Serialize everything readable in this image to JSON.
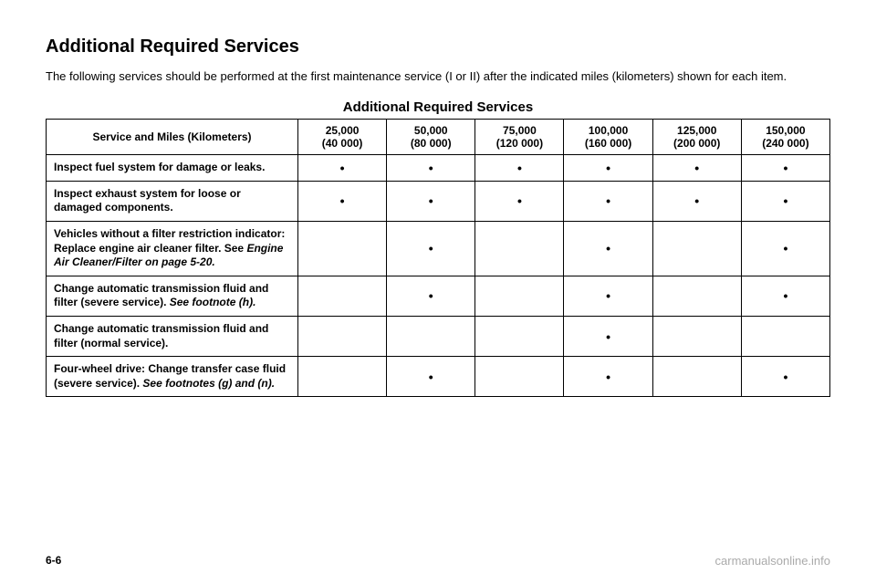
{
  "heading": "Additional Required Services",
  "intro": "The following services should be performed at the first maintenance service (I or II) after the indicated miles (kilometers) shown for each item.",
  "tableTitle": "Additional Required Services",
  "headers": {
    "service": "Service and Miles (Kilometers)",
    "col1": {
      "miles": "25,000",
      "km": "(40 000)"
    },
    "col2": {
      "miles": "50,000",
      "km": "(80 000)"
    },
    "col3": {
      "miles": "75,000",
      "km": "(120 000)"
    },
    "col4": {
      "miles": "100,000",
      "km": "(160 000)"
    },
    "col5": {
      "miles": "125,000",
      "km": "(200 000)"
    },
    "col6": {
      "miles": "150,000",
      "km": "(240 000)"
    }
  },
  "rows": [
    {
      "label": "Inspect fuel system for damage or leaks.",
      "marks": [
        "•",
        "•",
        "•",
        "•",
        "•",
        "•"
      ]
    },
    {
      "label": "Inspect exhaust system for loose or damaged components.",
      "marks": [
        "•",
        "•",
        "•",
        "•",
        "•",
        "•"
      ]
    },
    {
      "label_html": "Vehicles without a filter restriction indicator: Replace engine air cleaner filter. See <span class='italic'>Engine Air Cleaner/Filter on page 5-20.</span>",
      "marks": [
        "",
        "•",
        "",
        "•",
        "",
        "•"
      ]
    },
    {
      "label_html": "Change automatic transmission fluid and filter (severe service). <span class='italic'>See footnote (h).</span>",
      "marks": [
        "",
        "•",
        "",
        "•",
        "",
        "•"
      ]
    },
    {
      "label": "Change automatic transmission fluid and filter (normal service).",
      "marks": [
        "",
        "",
        "",
        "•",
        "",
        ""
      ]
    },
    {
      "label_html": "Four-wheel drive: Change transfer case fluid (severe service). <span class='italic'>See footnotes (g) and (n).</span>",
      "marks": [
        "",
        "•",
        "",
        "•",
        "",
        "•"
      ]
    }
  ],
  "pageNum": "6-6",
  "watermark": "carmanualsonline.info"
}
